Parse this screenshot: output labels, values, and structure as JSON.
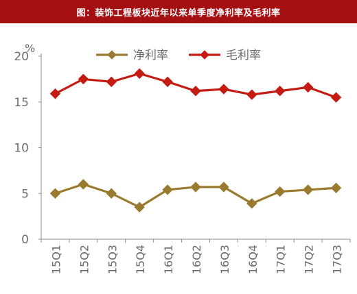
{
  "title": "图：装饰工程板块近年以来单季度净利率及毛利率",
  "chart_data": {
    "type": "line",
    "unit": "%",
    "categories": [
      "15Q1",
      "15Q2",
      "15Q3",
      "15Q4",
      "16Q1",
      "16Q2",
      "16Q3",
      "16Q4",
      "17Q1",
      "17Q2",
      "17Q3"
    ],
    "series": [
      {
        "name": "净利率",
        "color": "#9a7a2e",
        "values": [
          5.0,
          6.0,
          5.0,
          3.5,
          5.4,
          5.7,
          5.7,
          3.9,
          5.2,
          5.4,
          5.6
        ]
      },
      {
        "name": "毛利率",
        "color": "#c41b12",
        "values": [
          15.9,
          17.5,
          17.2,
          18.1,
          17.2,
          16.2,
          16.4,
          15.8,
          16.2,
          16.6,
          15.5
        ]
      }
    ],
    "ylim": [
      0,
      20
    ],
    "yticks": [
      0,
      5,
      10,
      15,
      20
    ],
    "legend_position": "top-center",
    "grid": false
  }
}
